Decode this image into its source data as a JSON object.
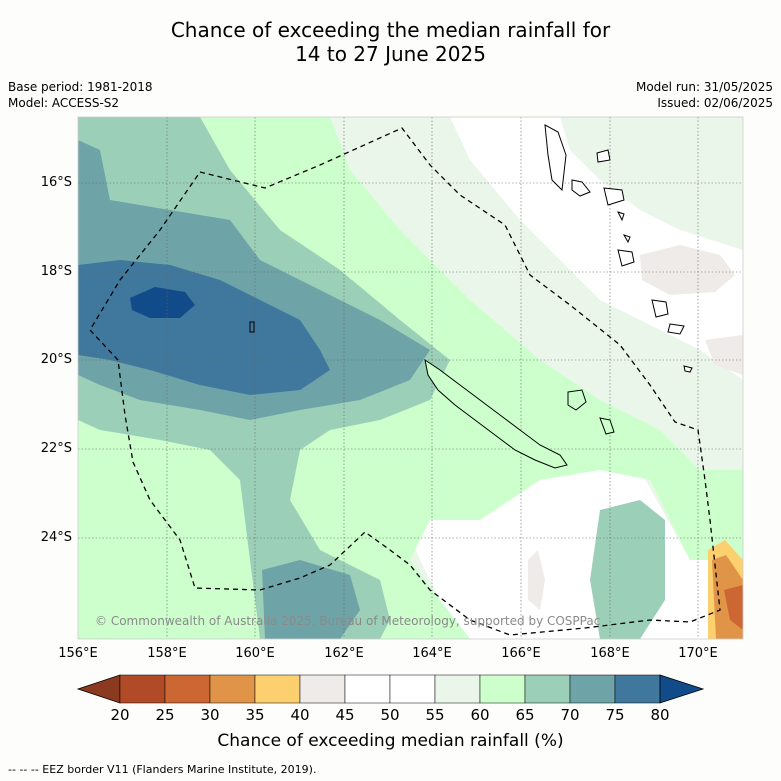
{
  "title_line1": "Chance of exceeding the median rainfall for",
  "title_line2": "14 to 27 June 2025",
  "meta_left": [
    "Base period: 1981-2018",
    "Model: ACCESS-S2"
  ],
  "meta_right": [
    "Model run: 31/05/2025",
    "Issued: 02/06/2025"
  ],
  "lat_labels": [
    "16°S",
    "18°S",
    "20°S",
    "22°S",
    "24°S"
  ],
  "lon_labels": [
    "156°E",
    "158°E",
    "160°E",
    "162°E",
    "164°E",
    "166°E",
    "168°E",
    "170°E"
  ],
  "colorbar": {
    "ticks": [
      "20",
      "25",
      "30",
      "35",
      "40",
      "45",
      "50",
      "55",
      "60",
      "65",
      "70",
      "75",
      "80"
    ],
    "colors": [
      "#8b3a1f",
      "#b14a26",
      "#cc6633",
      "#e09448",
      "#fdd06f",
      "#eeebe8",
      "#ffffff",
      "#ffffff",
      "#eaf6ea",
      "#ccffcc",
      "#9ccfb8",
      "#6ea4a7",
      "#3f789c",
      "#124b8a"
    ],
    "title": "Chance of exceeding median rainfall (%)"
  },
  "copyright": "© Commonwealth of Australia 2025, Bureau of Meteorology, supported by COSPPac",
  "footnote": "-- -- -- EEZ border V11 (Flanders Marine Institute, 2019)."
}
